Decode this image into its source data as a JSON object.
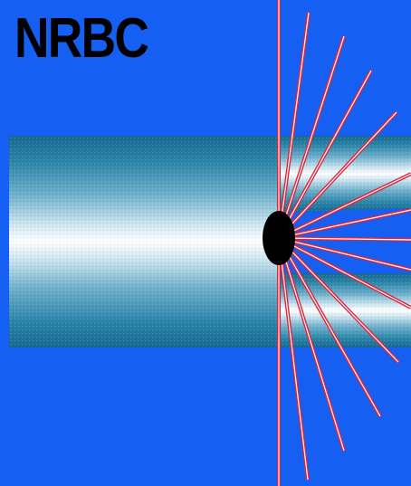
{
  "logo": {
    "text": "NRBC"
  },
  "colors": {
    "background": "#1560f2",
    "tube_edge": "#1b6aa0",
    "tube_mid": "#7fb8d2",
    "tube_center": "#ffffff",
    "ray_core": "#ffffff",
    "ray_outline": "#e0243c",
    "source": "#000000"
  },
  "icons": {
    "source": "black-disc-icon",
    "rays": "radiating-lines-icon"
  },
  "ray_count": 16
}
